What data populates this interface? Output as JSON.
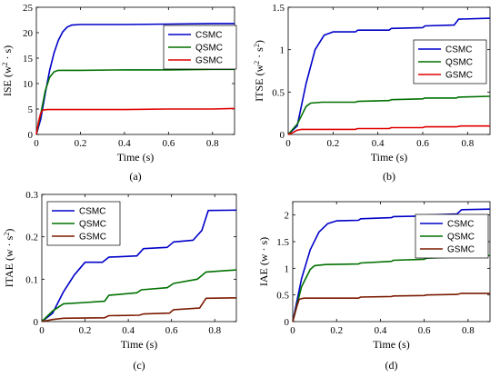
{
  "chart_data": [
    {
      "type": "line",
      "caption": "(a)",
      "xlabel": "Time (s)",
      "ylabel_main": "ISE",
      "ylabel_unit_pre": "(w",
      "ylabel_unit_sup": "2",
      "ylabel_unit_post": " · s)",
      "xlim": [
        0,
        0.9
      ],
      "ylim": [
        0,
        25
      ],
      "xticks": [
        0,
        0.2,
        0.4,
        0.6,
        0.8
      ],
      "xtick_labels": [
        "0",
        "0.2",
        "0.4",
        "0.6",
        "0.8"
      ],
      "yticks": [
        0,
        5,
        10,
        15,
        20,
        25
      ],
      "ytick_labels": [
        "0",
        "5",
        "10",
        "15",
        "20",
        "25"
      ],
      "grid": false,
      "legend_position": "middle-right",
      "series": [
        {
          "name": "CSMC",
          "color": "#0000c8",
          "points": [
            [
              0,
              0
            ],
            [
              0.02,
              3
            ],
            [
              0.04,
              8
            ],
            [
              0.06,
              12.5
            ],
            [
              0.08,
              16
            ],
            [
              0.1,
              18.5
            ],
            [
              0.12,
              20.2
            ],
            [
              0.14,
              21.1
            ],
            [
              0.16,
              21.5
            ],
            [
              0.2,
              21.6
            ],
            [
              0.4,
              21.6
            ],
            [
              0.6,
              21.7
            ],
            [
              0.8,
              21.8
            ],
            [
              0.9,
              21.8
            ]
          ]
        },
        {
          "name": "QSMC",
          "color": "#007000",
          "points": [
            [
              0,
              0
            ],
            [
              0.02,
              4
            ],
            [
              0.04,
              8.5
            ],
            [
              0.06,
              11.2
            ],
            [
              0.08,
              12.3
            ],
            [
              0.1,
              12.6
            ],
            [
              0.2,
              12.6
            ],
            [
              0.4,
              12.7
            ],
            [
              0.6,
              12.7
            ],
            [
              0.8,
              12.8
            ],
            [
              0.9,
              12.8
            ]
          ]
        },
        {
          "name": "GSMC",
          "color": "#e00000",
          "points": [
            [
              0,
              0
            ],
            [
              0.01,
              2.5
            ],
            [
              0.02,
              4.2
            ],
            [
              0.03,
              4.8
            ],
            [
              0.05,
              4.9
            ],
            [
              0.2,
              4.9
            ],
            [
              0.4,
              4.9
            ],
            [
              0.6,
              5.0
            ],
            [
              0.8,
              5.0
            ],
            [
              0.9,
              5.1
            ]
          ]
        }
      ]
    },
    {
      "type": "line",
      "caption": "(b)",
      "xlabel": "Time (s)",
      "ylabel_main": "ITSE",
      "ylabel_unit_pre": "(w",
      "ylabel_unit_sup": "2",
      "ylabel_unit_post": " · s",
      "ylabel_unit_sup2": "2",
      "ylabel_unit_end": ")",
      "xlim": [
        0,
        0.9
      ],
      "ylim": [
        0,
        1.5
      ],
      "xticks": [
        0,
        0.2,
        0.4,
        0.6,
        0.8
      ],
      "xtick_labels": [
        "0",
        "0.2",
        "0.4",
        "0.6",
        "0.8"
      ],
      "yticks": [
        0,
        0.5,
        1,
        1.5
      ],
      "ytick_labels": [
        "0",
        "0.5",
        "1",
        "1.5"
      ],
      "grid": false,
      "legend_position": "middle-right",
      "series": [
        {
          "name": "CSMC",
          "color": "#0000c8",
          "points": [
            [
              0,
              0
            ],
            [
              0.04,
              0.1
            ],
            [
              0.08,
              0.6
            ],
            [
              0.12,
              1.0
            ],
            [
              0.16,
              1.17
            ],
            [
              0.2,
              1.21
            ],
            [
              0.3,
              1.21
            ],
            [
              0.31,
              1.23
            ],
            [
              0.45,
              1.23
            ],
            [
              0.46,
              1.25
            ],
            [
              0.6,
              1.26
            ],
            [
              0.61,
              1.28
            ],
            [
              0.74,
              1.29
            ],
            [
              0.76,
              1.36
            ],
            [
              0.9,
              1.37
            ]
          ]
        },
        {
          "name": "QSMC",
          "color": "#007000",
          "points": [
            [
              0,
              0
            ],
            [
              0.04,
              0.12
            ],
            [
              0.08,
              0.33
            ],
            [
              0.1,
              0.37
            ],
            [
              0.15,
              0.38
            ],
            [
              0.3,
              0.38
            ],
            [
              0.31,
              0.39
            ],
            [
              0.45,
              0.4
            ],
            [
              0.46,
              0.41
            ],
            [
              0.6,
              0.42
            ],
            [
              0.61,
              0.43
            ],
            [
              0.75,
              0.43
            ],
            [
              0.76,
              0.44
            ],
            [
              0.9,
              0.45
            ]
          ]
        },
        {
          "name": "GSMC",
          "color": "#e00000",
          "points": [
            [
              0,
              0
            ],
            [
              0.02,
              0.02
            ],
            [
              0.04,
              0.05
            ],
            [
              0.06,
              0.06
            ],
            [
              0.3,
              0.06
            ],
            [
              0.31,
              0.07
            ],
            [
              0.45,
              0.07
            ],
            [
              0.46,
              0.08
            ],
            [
              0.6,
              0.08
            ],
            [
              0.61,
              0.09
            ],
            [
              0.75,
              0.09
            ],
            [
              0.77,
              0.1
            ],
            [
              0.9,
              0.1
            ]
          ]
        }
      ]
    },
    {
      "type": "line",
      "caption": "(c)",
      "xlabel": "Time (s)",
      "ylabel_main": "ITAE",
      "ylabel_unit_pre": "(w · s",
      "ylabel_unit_sup": "2",
      "ylabel_unit_post": ")",
      "xlim": [
        0,
        0.9
      ],
      "ylim": [
        0,
        0.3
      ],
      "xticks": [
        0,
        0.2,
        0.4,
        0.6,
        0.8
      ],
      "xtick_labels": [
        "0",
        "0.2",
        "0.4",
        "0.6",
        "0.8"
      ],
      "yticks": [
        0,
        0.1,
        0.2,
        0.3
      ],
      "ytick_labels": [
        "0",
        "0.1",
        "0.2",
        "0.3"
      ],
      "grid": false,
      "legend_position": "top-left",
      "series": [
        {
          "name": "CSMC",
          "color": "#0000c8",
          "points": [
            [
              0,
              0
            ],
            [
              0.05,
              0.02
            ],
            [
              0.1,
              0.07
            ],
            [
              0.15,
              0.11
            ],
            [
              0.2,
              0.14
            ],
            [
              0.28,
              0.14
            ],
            [
              0.31,
              0.152
            ],
            [
              0.44,
              0.155
            ],
            [
              0.47,
              0.172
            ],
            [
              0.58,
              0.175
            ],
            [
              0.61,
              0.188
            ],
            [
              0.7,
              0.192
            ],
            [
              0.74,
              0.215
            ],
            [
              0.77,
              0.262
            ],
            [
              0.9,
              0.263
            ]
          ]
        },
        {
          "name": "QSMC",
          "color": "#007000",
          "points": [
            [
              0,
              0
            ],
            [
              0.05,
              0.025
            ],
            [
              0.1,
              0.042
            ],
            [
              0.2,
              0.045
            ],
            [
              0.29,
              0.048
            ],
            [
              0.31,
              0.062
            ],
            [
              0.44,
              0.068
            ],
            [
              0.46,
              0.075
            ],
            [
              0.58,
              0.08
            ],
            [
              0.61,
              0.09
            ],
            [
              0.72,
              0.1
            ],
            [
              0.76,
              0.117
            ],
            [
              0.9,
              0.122
            ]
          ]
        },
        {
          "name": "GSMC",
          "color": "#7a1a00",
          "points": [
            [
              0,
              0
            ],
            [
              0.05,
              0.005
            ],
            [
              0.1,
              0.008
            ],
            [
              0.29,
              0.009
            ],
            [
              0.31,
              0.014
            ],
            [
              0.45,
              0.015
            ],
            [
              0.47,
              0.018
            ],
            [
              0.59,
              0.02
            ],
            [
              0.61,
              0.028
            ],
            [
              0.73,
              0.032
            ],
            [
              0.76,
              0.055
            ],
            [
              0.9,
              0.056
            ]
          ]
        }
      ]
    },
    {
      "type": "line",
      "caption": "(d)",
      "xlabel": "Time (s)",
      "ylabel_main": "IAE",
      "ylabel_unit_pre": "(w · s)",
      "ylabel_unit_sup": "",
      "ylabel_unit_post": "",
      "xlim": [
        0,
        0.9
      ],
      "ylim": [
        0,
        2.25
      ],
      "xticks": [
        0,
        0.2,
        0.4,
        0.6,
        0.8
      ],
      "xtick_labels": [
        "0",
        "0.2",
        "0.4",
        "0.6",
        "0.8"
      ],
      "yticks": [
        0,
        0.5,
        1,
        1.5,
        2
      ],
      "ytick_labels": [
        "0",
        "0.5",
        "1",
        "1.5",
        "2"
      ],
      "grid": false,
      "legend_position": "middle-right",
      "series": [
        {
          "name": "CSMC",
          "color": "#0000c8",
          "points": [
            [
              0,
              0
            ],
            [
              0.04,
              0.8
            ],
            [
              0.08,
              1.35
            ],
            [
              0.12,
              1.68
            ],
            [
              0.16,
              1.84
            ],
            [
              0.2,
              1.89
            ],
            [
              0.3,
              1.9
            ],
            [
              0.31,
              1.93
            ],
            [
              0.45,
              1.95
            ],
            [
              0.46,
              1.97
            ],
            [
              0.6,
              1.98
            ],
            [
              0.61,
              2.0
            ],
            [
              0.75,
              2.02
            ],
            [
              0.77,
              2.1
            ],
            [
              0.9,
              2.11
            ]
          ]
        },
        {
          "name": "QSMC",
          "color": "#007000",
          "points": [
            [
              0,
              0
            ],
            [
              0.04,
              0.65
            ],
            [
              0.08,
              0.98
            ],
            [
              0.1,
              1.05
            ],
            [
              0.15,
              1.07
            ],
            [
              0.3,
              1.08
            ],
            [
              0.31,
              1.1
            ],
            [
              0.45,
              1.13
            ],
            [
              0.46,
              1.15
            ],
            [
              0.6,
              1.17
            ],
            [
              0.61,
              1.19
            ],
            [
              0.75,
              1.21
            ],
            [
              0.77,
              1.23
            ],
            [
              0.9,
              1.24
            ]
          ]
        },
        {
          "name": "GSMC",
          "color": "#7a1a00",
          "points": [
            [
              0,
              0
            ],
            [
              0.02,
              0.3
            ],
            [
              0.03,
              0.42
            ],
            [
              0.05,
              0.44
            ],
            [
              0.3,
              0.44
            ],
            [
              0.31,
              0.46
            ],
            [
              0.45,
              0.47
            ],
            [
              0.46,
              0.48
            ],
            [
              0.6,
              0.49
            ],
            [
              0.61,
              0.5
            ],
            [
              0.75,
              0.51
            ],
            [
              0.77,
              0.53
            ],
            [
              0.9,
              0.53
            ]
          ]
        }
      ]
    }
  ]
}
